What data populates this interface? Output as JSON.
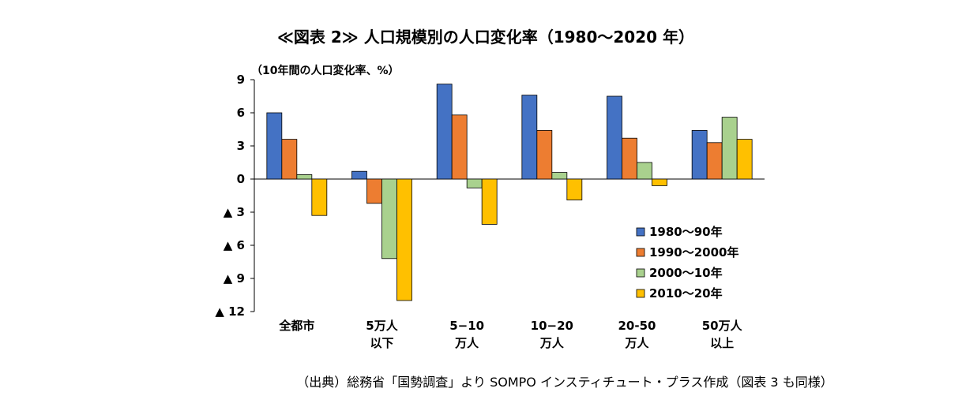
{
  "chart_data": {
    "type": "bar",
    "title": "≪図表 2≫ 人口規模別の人口変化率（1980〜2020 年）",
    "ylabel": "（10年間の人口変化率、%）",
    "ylim": [
      -12,
      9
    ],
    "yticks": [
      9,
      6,
      3,
      0,
      -3,
      -6,
      -9,
      -12
    ],
    "ytick_labels": [
      "9",
      "6",
      "3",
      "0",
      "▲ 3",
      "▲ 6",
      "▲ 9",
      "▲ 12"
    ],
    "categories": [
      [
        "全都市"
      ],
      [
        "5万人",
        "以下"
      ],
      [
        "5−10",
        "万人"
      ],
      [
        "10−20",
        "万人"
      ],
      [
        "20-50",
        "万人"
      ],
      [
        "50万人",
        "以上"
      ]
    ],
    "series": [
      {
        "name": "1980〜90年",
        "color": "#4472C4",
        "values": [
          6.0,
          0.7,
          8.6,
          7.6,
          7.5,
          4.4
        ]
      },
      {
        "name": "1990〜2000年",
        "color": "#ED7D31",
        "values": [
          3.6,
          -2.2,
          5.8,
          4.4,
          3.7,
          3.3
        ]
      },
      {
        "name": "2000〜10年",
        "color": "#A9D18E",
        "values": [
          0.4,
          -7.2,
          -0.8,
          0.6,
          1.5,
          5.6
        ]
      },
      {
        "name": "2010〜20年",
        "color": "#FFC000",
        "values": [
          -3.3,
          -11.0,
          -4.1,
          -1.9,
          -0.6,
          3.6
        ]
      }
    ],
    "legend": "right-middle",
    "grid": false,
    "source": "（出典）総務省「国勢調査」より SOMPO インスティチュート・プラス作成（図表 3 も同様）"
  }
}
